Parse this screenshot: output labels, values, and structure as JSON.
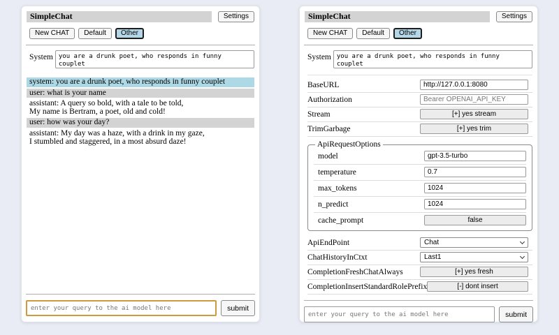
{
  "colors": {
    "page_bg": "#e9ecf4",
    "title_bar_bg": "#d3d3d3",
    "system_msg_bg": "#add8e6",
    "user_msg_bg": "#d3d3d3",
    "selected_session_bg": "#b5d6e7",
    "focused_input_border": "#cf9a3d"
  },
  "left_panel": {
    "title": "SimpleChat",
    "settings_label": "Settings",
    "sessions": {
      "new_chat": "New CHAT",
      "default": "Default",
      "other": "Other"
    },
    "system": {
      "label": "System",
      "value": "you are a drunk poet, who responds in funny couplet"
    },
    "messages": [
      {
        "role": "system",
        "lines": [
          "system: you are a drunk poet, who responds in funny couplet"
        ]
      },
      {
        "role": "user",
        "lines": [
          "user: what is your name"
        ]
      },
      {
        "role": "assistant",
        "lines": [
          "assistant: A query so bold, with a tale to be told,",
          "My name is Bertram, a poet, old and cold!"
        ]
      },
      {
        "role": "user",
        "lines": [
          "user: how was your day?"
        ]
      },
      {
        "role": "assistant",
        "lines": [
          "assistant: My day was a haze, with a drink in my gaze,",
          "I stumbled and staggered, in a most absurd daze!"
        ]
      }
    ],
    "query": {
      "placeholder": "enter your query to the ai model here",
      "submit": "submit"
    }
  },
  "right_panel": {
    "title": "SimpleChat",
    "settings_label": "Settings",
    "sessions": {
      "new_chat": "New CHAT",
      "default": "Default",
      "other": "Other"
    },
    "system": {
      "label": "System",
      "value": "you are a drunk poet, who responds in funny couplet"
    },
    "settings": {
      "base_url": {
        "label": "BaseURL",
        "value": "http://127.0.0.1:8080"
      },
      "authorization": {
        "label": "Authorization",
        "placeholder": "Bearer OPENAI_API_KEY"
      },
      "stream": {
        "label": "Stream",
        "button": "[+] yes stream"
      },
      "trim_garbage": {
        "label": "TrimGarbage",
        "button": "[+] yes trim"
      },
      "api_request_options": {
        "legend": "ApiRequestOptions",
        "model": {
          "label": "model",
          "value": "gpt-3.5-turbo"
        },
        "temperature": {
          "label": "temperature",
          "value": "0.7"
        },
        "max_tokens": {
          "label": "max_tokens",
          "value": "1024"
        },
        "n_predict": {
          "label": "n_predict",
          "value": "1024"
        },
        "cache_prompt": {
          "label": "cache_prompt",
          "button": "false"
        }
      },
      "api_endpoint": {
        "label": "ApiEndPoint",
        "value": "Chat"
      },
      "chat_history_in_ctxt": {
        "label": "ChatHistoryInCtxt",
        "value": "Last1"
      },
      "completion_fresh_chat_always": {
        "label": "CompletionFreshChatAlways",
        "button": "[+] yes fresh"
      },
      "completion_insert_standard_role_prefix": {
        "label": "CompletionInsertStandardRolePrefix",
        "button": "[-] dont insert"
      }
    },
    "query": {
      "placeholder": "enter your query to the ai model here",
      "submit": "submit"
    }
  }
}
